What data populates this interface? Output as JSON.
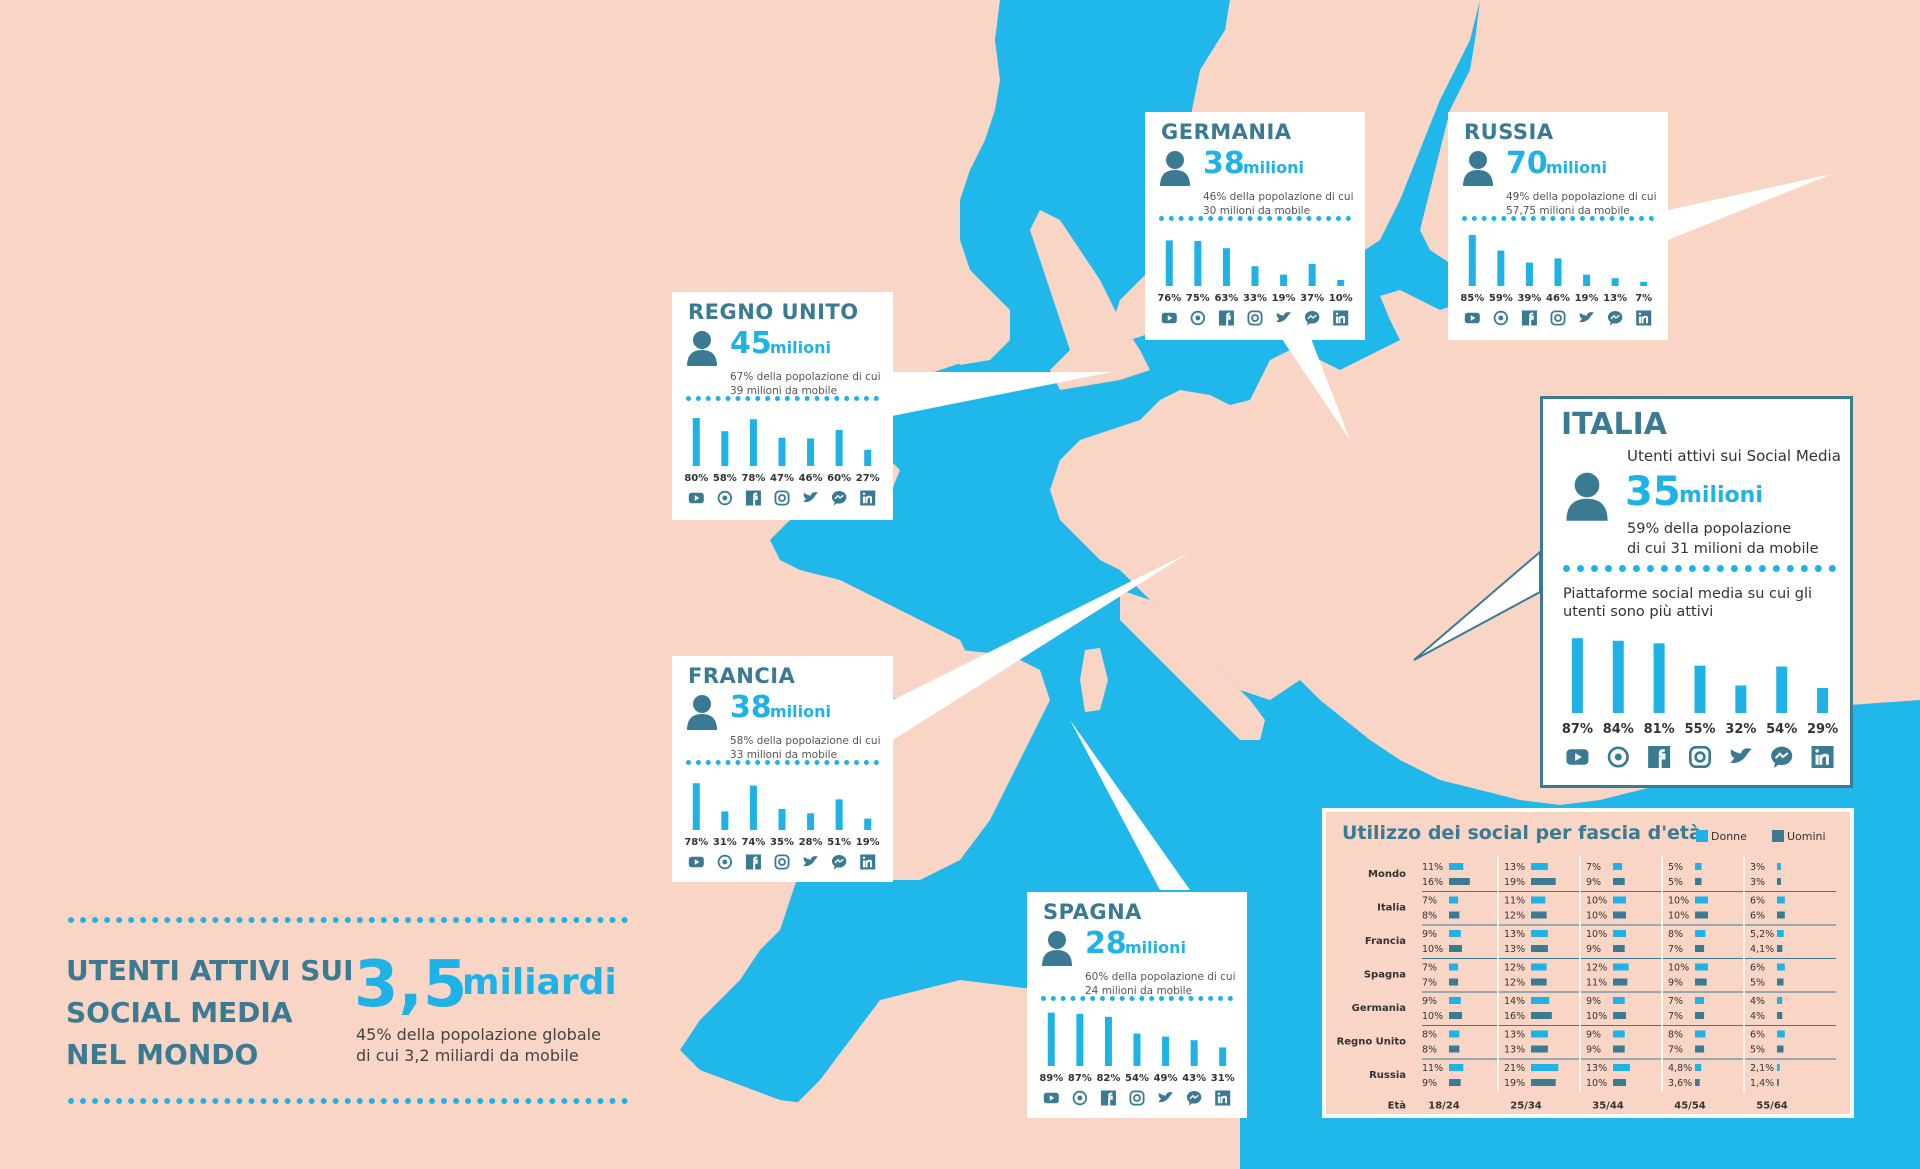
{
  "colors": {
    "sea": "#20b7ea",
    "land": "#f8d5c4",
    "accent": "#1fb2e6",
    "dark": "#3a7a93",
    "men": "#3a7a93",
    "women": "#1fb2e6"
  },
  "platform_icons": [
    "youtube-icon",
    "whatsapp-icon",
    "facebook-icon",
    "instagram-icon",
    "twitter-icon",
    "messenger-icon",
    "linkedin-icon"
  ],
  "world": {
    "title": "UTENTI ATTIVI SUI SOCIAL MEDIA NEL MONDO",
    "number": "3,5",
    "unit": "miliardi",
    "desc1": "45% della popolazione globale",
    "desc2": "di cui 3,2 miliardi da mobile"
  },
  "italia": {
    "name": "ITALIA",
    "subtitle": "Utenti attivi sui Social Media",
    "number": "35",
    "unit": "milioni",
    "desc1": "59% della popolazione",
    "desc2": "di cui 31 milioni da mobile",
    "platforms_title": "Piattaforme social media su cui gli utenti sono più attivi"
  },
  "countries": {
    "germania": {
      "name": "GERMANIA",
      "number": "38",
      "unit": "milioni",
      "desc1": "46% della popolazione di cui",
      "desc2": "30 milioni da mobile"
    },
    "russia": {
      "name": "RUSSIA",
      "number": "70",
      "unit": "milioni",
      "desc1": "49% della popolazione di cui",
      "desc2": "57,75 milioni da mobile"
    },
    "regno_unito": {
      "name": "REGNO UNITO",
      "number": "45",
      "unit": "milioni",
      "desc1": "67% della popolazione di cui",
      "desc2": "39 milioni da mobile"
    },
    "francia": {
      "name": "FRANCIA",
      "number": "38",
      "unit": "milioni",
      "desc1": "58% della popolazione di cui",
      "desc2": "33 milioni da mobile"
    },
    "spagna": {
      "name": "SPAGNA",
      "number": "28",
      "unit": "milioni",
      "desc1": "60% della popolazione di cui",
      "desc2": "24 milioni da mobile"
    }
  },
  "age_table": {
    "title": "Utilizzo dei social per fascia d'età",
    "legend_women": "Donne",
    "legend_men": "Uomini",
    "age_label": "Età"
  },
  "chart_data": [
    {
      "type": "bar",
      "id": "germania",
      "categories": [
        "YouTube",
        "WhatsApp",
        "Facebook",
        "Instagram",
        "Twitter",
        "Messenger",
        "LinkedIn"
      ],
      "values": [
        76,
        75,
        63,
        33,
        19,
        37,
        10
      ],
      "ylim": [
        0,
        100
      ]
    },
    {
      "type": "bar",
      "id": "russia",
      "categories": [
        "YouTube",
        "WhatsApp",
        "Facebook",
        "Instagram",
        "Twitter",
        "Messenger",
        "LinkedIn"
      ],
      "values": [
        85,
        59,
        39,
        46,
        19,
        13,
        7
      ],
      "ylim": [
        0,
        100
      ]
    },
    {
      "type": "bar",
      "id": "regno_unito",
      "categories": [
        "YouTube",
        "WhatsApp",
        "Facebook",
        "Instagram",
        "Twitter",
        "Messenger",
        "LinkedIn"
      ],
      "values": [
        80,
        58,
        78,
        47,
        46,
        60,
        27
      ],
      "ylim": [
        0,
        100
      ]
    },
    {
      "type": "bar",
      "id": "francia",
      "categories": [
        "YouTube",
        "WhatsApp",
        "Facebook",
        "Instagram",
        "Twitter",
        "Messenger",
        "LinkedIn"
      ],
      "values": [
        78,
        31,
        74,
        35,
        28,
        51,
        19
      ],
      "ylim": [
        0,
        100
      ]
    },
    {
      "type": "bar",
      "id": "spagna",
      "categories": [
        "YouTube",
        "WhatsApp",
        "Facebook",
        "Instagram",
        "Twitter",
        "Messenger",
        "LinkedIn"
      ],
      "values": [
        89,
        87,
        82,
        54,
        49,
        43,
        31
      ],
      "ylim": [
        0,
        100
      ]
    },
    {
      "type": "bar",
      "id": "italia",
      "categories": [
        "YouTube",
        "WhatsApp",
        "Facebook",
        "Instagram",
        "Twitter",
        "Messenger",
        "LinkedIn"
      ],
      "values": [
        87,
        84,
        81,
        55,
        32,
        54,
        29
      ],
      "ylim": [
        0,
        100
      ]
    },
    {
      "type": "table",
      "id": "age",
      "title": "Utilizzo dei social per fascia d'età",
      "columns": [
        "18/24",
        "25/34",
        "35/44",
        "45/54",
        "55/64"
      ],
      "rows": [
        {
          "country": "Mondo",
          "donne": [
            "11%",
            "13%",
            "7%",
            "5%",
            "3%"
          ],
          "uomini": [
            "16%",
            "19%",
            "9%",
            "5%",
            "3%"
          ]
        },
        {
          "country": "Italia",
          "donne": [
            "7%",
            "11%",
            "10%",
            "10%",
            "6%"
          ],
          "uomini": [
            "8%",
            "12%",
            "10%",
            "10%",
            "6%"
          ]
        },
        {
          "country": "Francia",
          "donne": [
            "9%",
            "13%",
            "10%",
            "8%",
            "5,2%"
          ],
          "uomini": [
            "10%",
            "13%",
            "9%",
            "7%",
            "4,1%"
          ]
        },
        {
          "country": "Spagna",
          "donne": [
            "7%",
            "12%",
            "12%",
            "10%",
            "6%"
          ],
          "uomini": [
            "7%",
            "12%",
            "11%",
            "9%",
            "5%"
          ]
        },
        {
          "country": "Germania",
          "donne": [
            "9%",
            "14%",
            "9%",
            "7%",
            "4%"
          ],
          "uomini": [
            "10%",
            "16%",
            "10%",
            "7%",
            "4%"
          ]
        },
        {
          "country": "Regno Unito",
          "donne": [
            "8%",
            "13%",
            "9%",
            "8%",
            "6%"
          ],
          "uomini": [
            "8%",
            "13%",
            "9%",
            "7%",
            "5%"
          ]
        },
        {
          "country": "Russia",
          "donne": [
            "11%",
            "21%",
            "13%",
            "4,8%",
            "2,1%"
          ],
          "uomini": [
            "9%",
            "19%",
            "10%",
            "3,6%",
            "1,4%"
          ]
        }
      ]
    }
  ]
}
